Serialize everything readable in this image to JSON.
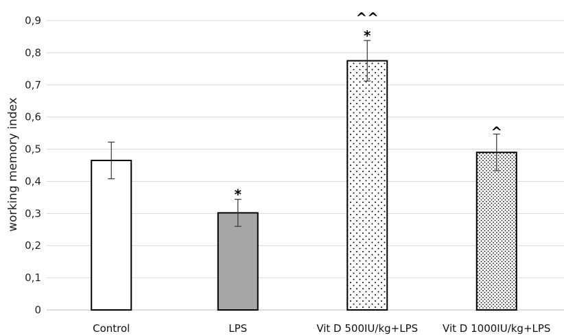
{
  "chart_data": {
    "type": "bar",
    "categories": [
      "Control",
      "LPS",
      "Vit D 500IU/kg+LPS",
      "Vit D 1000IU/kg+LPS"
    ],
    "values": [
      0.465,
      0.302,
      0.775,
      0.49
    ],
    "errors": [
      0.057,
      0.042,
      0.063,
      0.057
    ],
    "annotations": [
      "",
      "*",
      "*\n^^",
      "^"
    ],
    "fills": [
      "solid-white",
      "solid-gray",
      "sparse-dots",
      "dense-dots"
    ],
    "ylabel": "working memory index",
    "ylim": [
      0,
      0.9
    ],
    "yticks": [
      "0",
      "0,1",
      "0,2",
      "0,3",
      "0,4",
      "0,5",
      "0,6",
      "0,7",
      "0,8",
      "0,9"
    ],
    "grid": true,
    "colors": {
      "gray_bar": "#a6a6a6",
      "outline": "#000000",
      "grid": "#d9d9d9"
    }
  }
}
